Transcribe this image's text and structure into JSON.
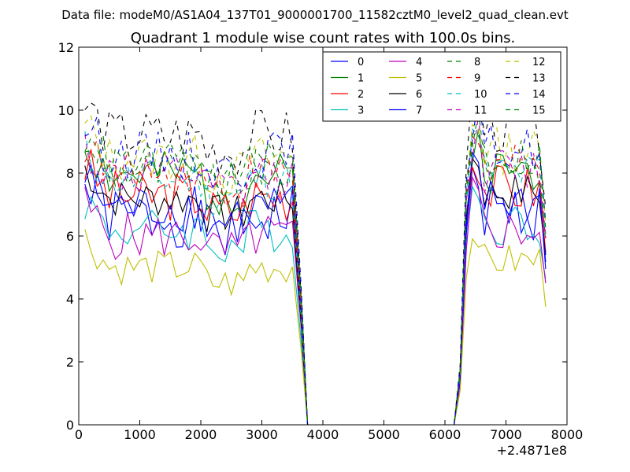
{
  "chart_data": {
    "type": "line",
    "suptitle": "Data file: modeM0/AS1A04_137T01_9000001700_11582cztM0_level2_quad_clean.evt",
    "title": "Quadrant 1 module wise count rates with 100.0s bins.",
    "xlabel": "",
    "ylabel": "",
    "x_offset_label": "+2.4871e8",
    "xlim": [
      0,
      8000
    ],
    "ylim": [
      0,
      12
    ],
    "x_ticks": [
      "0",
      "1000",
      "2000",
      "3000",
      "4000",
      "5000",
      "6000",
      "7000",
      "8000"
    ],
    "y_ticks": [
      "0",
      "2",
      "4",
      "6",
      "8",
      "10",
      "12"
    ],
    "grid": false,
    "legend_position": "top-right",
    "legend_columns": 4,
    "series": [
      {
        "name": "0",
        "color": "#0000ff",
        "dash": "solid",
        "level": 6.6,
        "amp": 0.7,
        "seed": 1
      },
      {
        "name": "1",
        "color": "#008000",
        "dash": "solid",
        "level": 7.9,
        "amp": 0.55,
        "seed": 2
      },
      {
        "name": "2",
        "color": "#ff0000",
        "dash": "solid",
        "level": 7.3,
        "amp": 0.6,
        "seed": 3
      },
      {
        "name": "3",
        "color": "#00bfbf",
        "dash": "solid",
        "level": 6.2,
        "amp": 0.5,
        "seed": 4
      },
      {
        "name": "4",
        "color": "#bf00bf",
        "dash": "solid",
        "level": 6.0,
        "amp": 0.55,
        "seed": 5
      },
      {
        "name": "5",
        "color": "#bfbf00",
        "dash": "solid",
        "level": 5.0,
        "amp": 0.4,
        "seed": 6
      },
      {
        "name": "6",
        "color": "#000000",
        "dash": "solid",
        "level": 7.2,
        "amp": 0.45,
        "seed": 7
      },
      {
        "name": "7",
        "color": "#0000ff",
        "dash": "solid",
        "level": 6.9,
        "amp": 0.55,
        "seed": 8
      },
      {
        "name": "8",
        "color": "#008000",
        "dash": "dashed",
        "level": 8.1,
        "amp": 0.5,
        "seed": 9
      },
      {
        "name": "9",
        "color": "#ff0000",
        "dash": "dashed",
        "level": 8.0,
        "amp": 0.5,
        "seed": 10
      },
      {
        "name": "10",
        "color": "#00bfbf",
        "dash": "dashed",
        "level": 7.8,
        "amp": 0.5,
        "seed": 11
      },
      {
        "name": "11",
        "color": "#bf00bf",
        "dash": "dashed",
        "level": 7.9,
        "amp": 0.55,
        "seed": 12
      },
      {
        "name": "12",
        "color": "#bfbf00",
        "dash": "dashed",
        "level": 8.5,
        "amp": 0.55,
        "seed": 13
      },
      {
        "name": "13",
        "color": "#000000",
        "dash": "dashed",
        "level": 9.2,
        "amp": 0.6,
        "seed": 14
      },
      {
        "name": "14",
        "color": "#0000ff",
        "dash": "dashed",
        "level": 8.6,
        "amp": 0.55,
        "seed": 15
      },
      {
        "name": "15",
        "color": "#008000",
        "dash": "dashed",
        "level": 8.3,
        "amp": 0.5,
        "seed": 16
      }
    ],
    "segments": {
      "active1": {
        "start": 100,
        "end": 3550,
        "step": 100
      },
      "drop1": {
        "x": [
          3550,
          3650,
          3750
        ],
        "frac": [
          1.0,
          0.45,
          0.0
        ]
      },
      "gap": {
        "start": 3750,
        "end": 6150,
        "value": 0
      },
      "rise2": {
        "x": [
          6150,
          6250,
          6350
        ],
        "frac": [
          0.0,
          0.2,
          0.85
        ]
      },
      "active2": {
        "start": 6450,
        "end": 7550,
        "step": 100
      },
      "end_point": {
        "x": 7650,
        "frac": 0.75
      }
    }
  }
}
